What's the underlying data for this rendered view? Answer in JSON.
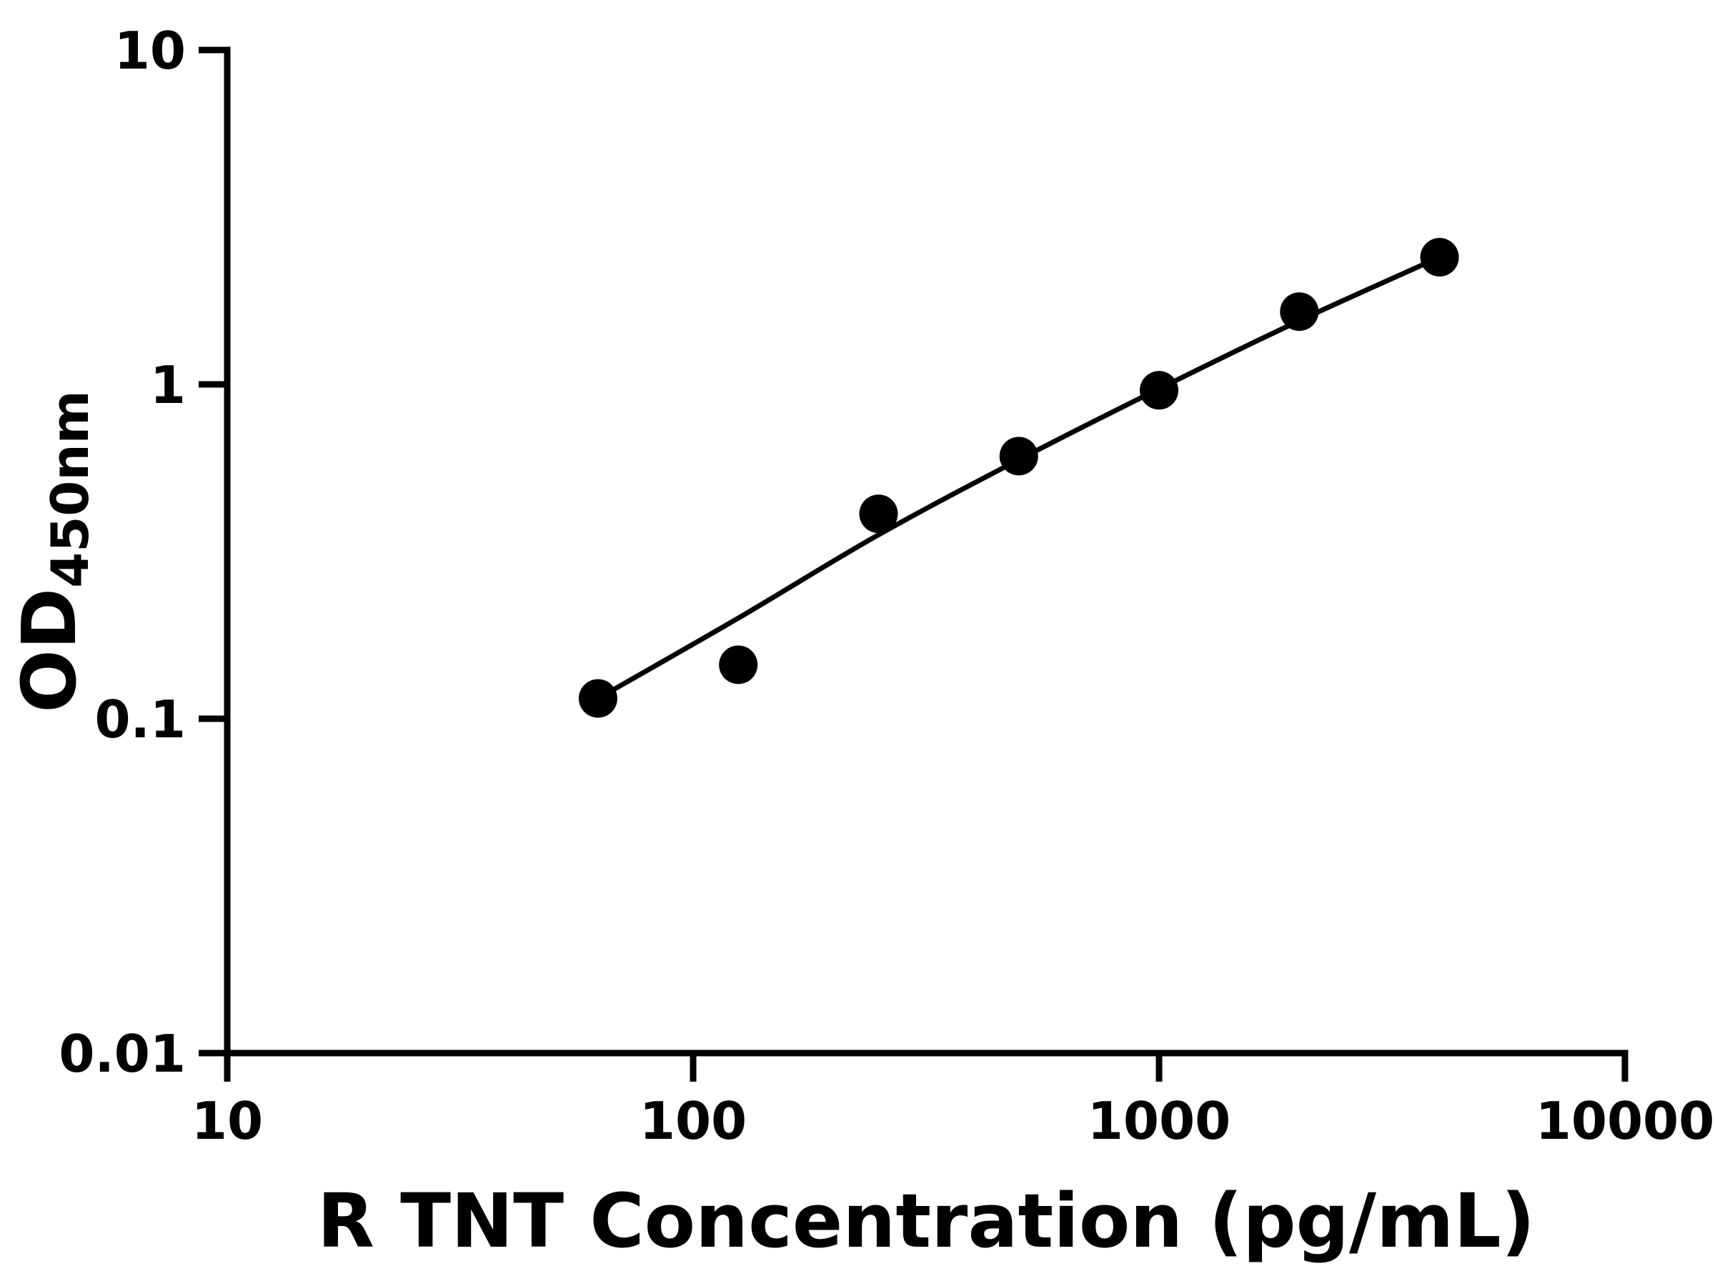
{
  "chart_data": {
    "type": "scatter",
    "title": "",
    "xlabel": "R TNT Concentration (pg/mL)",
    "ylabel_main": "OD",
    "ylabel_sub": "450nm",
    "x_scale": "log",
    "y_scale": "log",
    "xlim": [
      10,
      10000
    ],
    "ylim": [
      0.01,
      10
    ],
    "x_ticks": [
      10,
      100,
      1000,
      10000
    ],
    "x_tick_labels": [
      "10",
      "100",
      "1000",
      "10000"
    ],
    "y_ticks": [
      0.01,
      0.1,
      1,
      10
    ],
    "y_tick_labels": [
      "0.01",
      "0.1",
      "1",
      "10"
    ],
    "grid": false,
    "legend": null,
    "series": [
      {
        "name": "standard-curve-points",
        "type": "scatter",
        "x": [
          62.5,
          125,
          250,
          500,
          1000,
          2000,
          4000
        ],
        "y": [
          0.115,
          0.145,
          0.41,
          0.61,
          0.96,
          1.65,
          2.4
        ]
      }
    ],
    "fit_curve": {
      "name": "fitted-standard-curve",
      "x": [
        62.5,
        125,
        250,
        500,
        1000,
        2000,
        4000
      ],
      "y": [
        0.115,
        0.2,
        0.355,
        0.595,
        0.97,
        1.55,
        2.4
      ]
    },
    "colors": {
      "points": "#000000",
      "line": "#000000",
      "axis": "#000000",
      "text": "#000000",
      "background": "#ffffff"
    }
  }
}
